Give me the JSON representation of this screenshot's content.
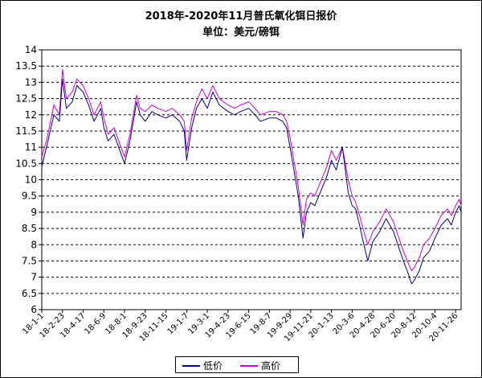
{
  "chart_data": {
    "type": "line",
    "title": "2018年-2020年11月普氏氧化铒日报价",
    "subtitle": "单位：美元/磅铒",
    "ylim": [
      6,
      14
    ],
    "yticks": [
      "6",
      "6.5",
      "7",
      "7.5",
      "8",
      "8.5",
      "9",
      "9.5",
      "10",
      "10.5",
      "11",
      "11.5",
      "12",
      "12.5",
      "13",
      "13.5",
      "14"
    ],
    "xtick_labels": [
      "18-1-1",
      "18-2-23",
      "18-4-17",
      "18-6-9",
      "18-8-1",
      "18-9-23",
      "18-11-15",
      "19-1-7",
      "19-3-1",
      "19-4-23",
      "19-6-15",
      "19-8-7",
      "19-9-29",
      "19-11-21",
      "20-1-13",
      "20-3-6",
      "20-4-28",
      "20-6-20",
      "20-8-12",
      "20-10-4",
      "20-11-26"
    ],
    "grid": "horizontal dashed",
    "legend_position": "bottom-center",
    "series": [
      {
        "name": "低价",
        "color": "#000080",
        "x": [
          "2018-01-01",
          "2018-01-15",
          "2018-02-01",
          "2018-02-15",
          "2018-02-23",
          "2018-03-05",
          "2018-03-20",
          "2018-04-01",
          "2018-04-17",
          "2018-05-01",
          "2018-05-15",
          "2018-06-01",
          "2018-06-09",
          "2018-06-20",
          "2018-07-05",
          "2018-07-20",
          "2018-08-01",
          "2018-08-15",
          "2018-09-01",
          "2018-09-10",
          "2018-09-23",
          "2018-10-10",
          "2018-10-25",
          "2018-11-15",
          "2018-12-01",
          "2018-12-20",
          "2019-01-01",
          "2019-01-07",
          "2019-01-20",
          "2019-02-01",
          "2019-02-15",
          "2019-03-01",
          "2019-03-15",
          "2019-04-01",
          "2019-04-23",
          "2019-05-10",
          "2019-05-25",
          "2019-06-15",
          "2019-07-01",
          "2019-07-15",
          "2019-08-07",
          "2019-08-25",
          "2019-09-10",
          "2019-09-20",
          "2019-09-29",
          "2019-10-10",
          "2019-10-20",
          "2019-11-01",
          "2019-11-10",
          "2019-11-21",
          "2019-12-01",
          "2019-12-15",
          "2020-01-01",
          "2020-01-13",
          "2020-01-25",
          "2020-02-10",
          "2020-02-25",
          "2020-03-06",
          "2020-03-15",
          "2020-03-25",
          "2020-04-05",
          "2020-04-15",
          "2020-04-28",
          "2020-05-15",
          "2020-06-01",
          "2020-06-20",
          "2020-07-01",
          "2020-07-15",
          "2020-07-25",
          "2020-08-05",
          "2020-08-12",
          "2020-08-25",
          "2020-09-05",
          "2020-09-20",
          "2020-10-04",
          "2020-10-20",
          "2020-11-05",
          "2020-11-15",
          "2020-11-26",
          "2020-12-05",
          "2020-12-10"
        ],
        "values": [
          10.4,
          11.1,
          12.0,
          11.8,
          13.1,
          12.2,
          12.4,
          12.9,
          12.7,
          12.3,
          11.8,
          12.2,
          11.6,
          11.2,
          11.4,
          10.9,
          10.5,
          11.2,
          12.4,
          12.0,
          11.8,
          12.1,
          12.0,
          11.9,
          12.0,
          11.8,
          11.5,
          10.6,
          11.6,
          12.2,
          12.5,
          12.2,
          12.7,
          12.3,
          12.1,
          12.0,
          12.1,
          12.2,
          12.0,
          11.8,
          11.9,
          11.9,
          11.8,
          11.6,
          11.0,
          10.2,
          9.5,
          8.2,
          9.0,
          9.3,
          9.2,
          9.6,
          10.1,
          10.6,
          10.3,
          11.0,
          9.6,
          9.2,
          9.1,
          8.6,
          8.0,
          7.5,
          8.1,
          8.4,
          8.8,
          8.4,
          8.0,
          7.5,
          7.2,
          6.8,
          6.9,
          7.2,
          7.6,
          7.8,
          8.2,
          8.6,
          8.8,
          8.6,
          9.0,
          9.2,
          9.0
        ]
      },
      {
        "name": "高价",
        "color": "#cc00cc",
        "x": [
          "2018-01-01",
          "2018-01-15",
          "2018-02-01",
          "2018-02-15",
          "2018-02-23",
          "2018-03-05",
          "2018-03-20",
          "2018-04-01",
          "2018-04-17",
          "2018-05-01",
          "2018-05-15",
          "2018-06-01",
          "2018-06-09",
          "2018-06-20",
          "2018-07-05",
          "2018-07-20",
          "2018-08-01",
          "2018-08-15",
          "2018-09-01",
          "2018-09-10",
          "2018-09-23",
          "2018-10-10",
          "2018-10-25",
          "2018-11-15",
          "2018-12-01",
          "2018-12-20",
          "2019-01-01",
          "2019-01-07",
          "2019-01-20",
          "2019-02-01",
          "2019-02-15",
          "2019-03-01",
          "2019-03-15",
          "2019-04-01",
          "2019-04-23",
          "2019-05-10",
          "2019-05-25",
          "2019-06-15",
          "2019-07-01",
          "2019-07-15",
          "2019-08-07",
          "2019-08-25",
          "2019-09-10",
          "2019-09-20",
          "2019-09-29",
          "2019-10-10",
          "2019-10-20",
          "2019-11-01",
          "2019-11-10",
          "2019-11-21",
          "2019-12-01",
          "2019-12-15",
          "2020-01-01",
          "2020-01-13",
          "2020-01-25",
          "2020-02-10",
          "2020-02-25",
          "2020-03-06",
          "2020-03-15",
          "2020-03-25",
          "2020-04-05",
          "2020-04-15",
          "2020-04-28",
          "2020-05-15",
          "2020-06-01",
          "2020-06-20",
          "2020-07-01",
          "2020-07-15",
          "2020-07-25",
          "2020-08-05",
          "2020-08-12",
          "2020-08-25",
          "2020-09-05",
          "2020-09-20",
          "2020-10-04",
          "2020-10-20",
          "2020-11-05",
          "2020-11-15",
          "2020-11-26",
          "2020-12-05",
          "2020-12-10"
        ],
        "values": [
          10.7,
          11.3,
          12.3,
          12.0,
          13.4,
          12.5,
          12.7,
          13.1,
          12.9,
          12.5,
          12.0,
          12.4,
          11.9,
          11.4,
          11.6,
          11.1,
          10.7,
          11.4,
          12.6,
          12.2,
          12.1,
          12.3,
          12.2,
          12.1,
          12.2,
          12.0,
          11.8,
          10.9,
          11.9,
          12.4,
          12.8,
          12.5,
          12.9,
          12.5,
          12.3,
          12.2,
          12.3,
          12.4,
          12.2,
          12.0,
          12.1,
          12.1,
          12.0,
          11.8,
          11.3,
          10.5,
          9.8,
          8.6,
          9.4,
          9.6,
          9.5,
          9.9,
          10.4,
          10.9,
          10.6,
          11.0,
          10.0,
          9.5,
          9.3,
          8.9,
          8.4,
          8.0,
          8.4,
          8.7,
          9.1,
          8.7,
          8.3,
          7.8,
          7.5,
          7.2,
          7.3,
          7.6,
          8.0,
          8.2,
          8.5,
          8.9,
          9.1,
          8.9,
          9.2,
          9.4,
          9.2
        ]
      }
    ]
  }
}
